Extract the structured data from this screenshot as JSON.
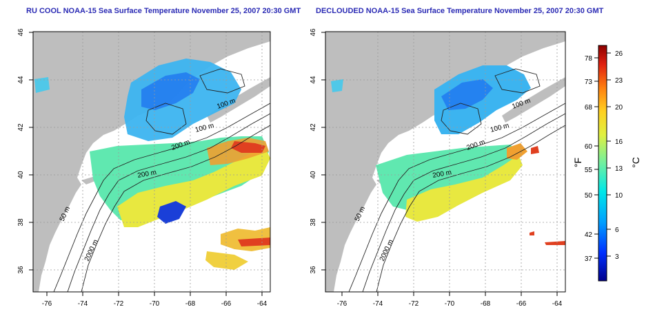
{
  "panels": [
    {
      "title": "RU COOL NOAA-15 Sea Surface Temperature November 25, 2007 20:30 GMT",
      "x_ticks": [
        "-76",
        "-74",
        "-72",
        "-70",
        "-68",
        "-66",
        "-64"
      ],
      "y_ticks": [
        "36",
        "38",
        "40",
        "42",
        "44",
        "46"
      ],
      "contour_labels": [
        "200 m",
        "100 m",
        "100 m",
        "200 m",
        "50 m",
        "2000 m"
      ]
    },
    {
      "title": "DECLOUDED NOAA-15 Sea Surface Temperature November 25, 2007 20:30 GMT",
      "x_ticks": [
        "-76",
        "-74",
        "-72",
        "-70",
        "-68",
        "-66",
        "-64"
      ],
      "y_ticks": [
        "36",
        "38",
        "40",
        "42",
        "44",
        "46"
      ],
      "contour_labels": [
        "200 m",
        "100 m",
        "100 m",
        "200 m",
        "50 m",
        "2000 m"
      ]
    }
  ],
  "colorbar": {
    "f_label": "°F",
    "c_label": "°C",
    "f_ticks": [
      "78",
      "73",
      "68",
      "60",
      "55",
      "50",
      "42",
      "37"
    ],
    "c_ticks": [
      "26",
      "23",
      "20",
      "16",
      "13",
      "10",
      "6",
      "3"
    ]
  },
  "colors": {
    "land": "#bebebe",
    "grid": "#9a9a9a",
    "title": "#2a2ab4",
    "cold": "#1a3fd8",
    "cool": "#3cb4f0",
    "mid": "#7cf0a8",
    "warm": "#f0e040",
    "hot": "#e04020"
  }
}
